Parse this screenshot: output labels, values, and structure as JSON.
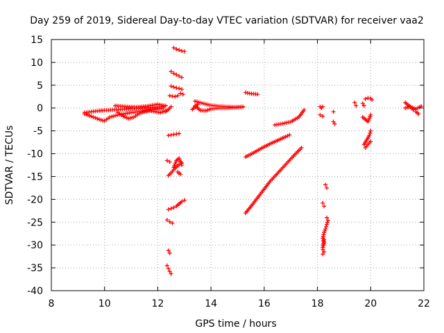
{
  "chart_data": {
    "type": "scatter",
    "title": "Day 259 of 2019, Sidereal Day-to-day VTEC variation (SDTVAR) for receiver vaa2",
    "xlabel": "GPS time / hours",
    "ylabel": "SDTVAR / TECUs",
    "xlim": [
      8,
      22
    ],
    "ylim": [
      -40,
      15
    ],
    "xticks": [
      8,
      10,
      12,
      14,
      16,
      18,
      20,
      22
    ],
    "yticks": [
      15,
      10,
      5,
      0,
      -5,
      -10,
      -15,
      -20,
      -25,
      -30,
      -35,
      -40
    ],
    "grid": true,
    "marker": "+",
    "color": "#ff0000",
    "segments": [
      {
        "x": [
          9.25,
          9.5,
          9.8,
          10.0,
          10.3,
          10.6,
          10.9,
          11.2,
          11.5,
          11.8,
          12.2
        ],
        "y": [
          -1.0,
          -0.8,
          -0.6,
          -0.5,
          -0.4,
          -0.3,
          -0.2,
          -0.1,
          0.0,
          0.1,
          0.3
        ]
      },
      {
        "x": [
          9.25,
          9.5,
          9.8,
          10.0,
          10.2,
          10.5,
          10.8,
          11.0,
          11.3,
          11.6,
          11.9,
          12.2
        ],
        "y": [
          -1.3,
          -1.8,
          -2.5,
          -2.8,
          -2.0,
          -1.5,
          -1.2,
          -1.0,
          -0.8,
          -0.5,
          -0.3,
          0.0
        ]
      },
      {
        "x": [
          10.5,
          10.7,
          10.9,
          11.1,
          11.3,
          11.5,
          11.7,
          11.9,
          12.1,
          12.3
        ],
        "y": [
          -1.0,
          -1.8,
          -2.3,
          -2.0,
          -1.2,
          -0.8,
          -0.6,
          -0.8,
          -1.0,
          -0.6
        ]
      },
      {
        "x": [
          10.4,
          10.8,
          11.2,
          11.6,
          12.0,
          12.3
        ],
        "y": [
          0.5,
          0.3,
          0.2,
          0.4,
          0.8,
          0.5
        ]
      },
      {
        "x": [
          12.3,
          12.4,
          12.5
        ],
        "y": [
          -0.8,
          -0.3,
          0.3
        ]
      },
      {
        "x": [
          12.45,
          12.55,
          12.65,
          12.75
        ],
        "y": [
          2.7,
          2.6,
          2.5,
          2.7
        ]
      },
      {
        "x": [
          12.5,
          12.6,
          12.7,
          12.8,
          12.9
        ],
        "y": [
          4.8,
          4.6,
          4.4,
          4.3,
          4.1
        ]
      },
      {
        "x": [
          12.85,
          12.95
        ],
        "y": [
          3.2,
          3.0
        ]
      },
      {
        "x": [
          12.5,
          12.6,
          12.7,
          12.8,
          12.9
        ],
        "y": [
          8.0,
          7.6,
          7.3,
          7.0,
          6.7
        ]
      },
      {
        "x": [
          12.6,
          12.7,
          12.8,
          12.9,
          13.0
        ],
        "y": [
          13.2,
          12.9,
          12.7,
          12.5,
          12.4
        ]
      },
      {
        "x": [
          12.4,
          12.5,
          12.6,
          12.7,
          12.8
        ],
        "y": [
          -6.0,
          -5.9,
          -5.8,
          -5.7,
          -5.6
        ]
      },
      {
        "x": [
          12.35,
          12.45
        ],
        "y": [
          -11.5,
          -11.8
        ]
      },
      {
        "x": [
          12.4,
          12.5,
          12.6,
          12.7,
          12.8,
          12.9
        ],
        "y": [
          -14.8,
          -14.2,
          -13.5,
          -12.9,
          -12.4,
          -12.0
        ]
      },
      {
        "x": [
          12.6,
          12.7,
          12.8,
          12.9
        ],
        "y": [
          -13.0,
          -11.5,
          -11.0,
          -12.5
        ]
      },
      {
        "x": [
          12.75,
          12.85
        ],
        "y": [
          -14.0,
          -14.5
        ]
      },
      {
        "x": [
          12.4,
          12.5,
          12.6,
          12.7,
          12.8,
          12.9,
          13.0
        ],
        "y": [
          -22.2,
          -22.0,
          -21.8,
          -21.5,
          -21.0,
          -20.5,
          -20.2
        ]
      },
      {
        "x": [
          12.35,
          12.45,
          12.55
        ],
        "y": [
          -24.5,
          -24.9,
          -25.2
        ]
      },
      {
        "x": [
          12.4,
          12.45
        ],
        "y": [
          -31.2,
          -31.8
        ]
      },
      {
        "x": [
          12.35,
          12.4,
          12.45,
          12.5
        ],
        "y": [
          -34.5,
          -35.2,
          -35.8,
          -36.3
        ]
      },
      {
        "x": [
          13.4,
          13.7,
          14.0,
          14.3,
          14.6,
          14.9,
          15.2
        ],
        "y": [
          1.5,
          1.0,
          0.6,
          0.4,
          0.3,
          0.2,
          0.3
        ]
      },
      {
        "x": [
          13.4,
          13.6,
          13.8,
          14.0,
          14.3,
          14.6,
          14.9,
          15.2
        ],
        "y": [
          0.5,
          -0.5,
          -0.6,
          -0.2,
          0.0,
          0.0,
          0.1,
          0.2
        ]
      },
      {
        "x": [
          13.3,
          13.4,
          13.5
        ],
        "y": [
          -0.3,
          0.2,
          0.8
        ]
      },
      {
        "x": [
          15.3,
          15.45,
          15.6,
          15.75
        ],
        "y": [
          3.4,
          3.2,
          3.1,
          3.0
        ]
      },
      {
        "x": [
          15.3,
          15.6,
          15.9,
          16.2,
          16.5,
          16.8,
          16.95
        ],
        "y": [
          -10.7,
          -9.8,
          -8.8,
          -7.9,
          -7.1,
          -6.3,
          -5.9
        ]
      },
      {
        "x": [
          15.3,
          15.6,
          15.9,
          16.2,
          16.5,
          16.8,
          17.1,
          17.4
        ],
        "y": [
          -23.0,
          -20.8,
          -18.5,
          -16.2,
          -14.3,
          -12.4,
          -10.5,
          -8.7
        ]
      },
      {
        "x": [
          16.4,
          16.7,
          17.0,
          17.3,
          17.5
        ],
        "y": [
          -3.7,
          -3.4,
          -3.0,
          -2.0,
          -0.4
        ]
      },
      {
        "x": [
          18.1,
          18.15,
          18.2
        ],
        "y": [
          0.3,
          0.0,
          0.3
        ]
      },
      {
        "x": [
          18.1,
          18.2
        ],
        "y": [
          -1.5,
          -1.8
        ]
      },
      {
        "x": [
          18.6
        ],
        "y": [
          -0.8
        ]
      },
      {
        "x": [
          18.6,
          18.65
        ],
        "y": [
          -3.0,
          -3.5
        ]
      },
      {
        "x": [
          18.3,
          18.35
        ],
        "y": [
          -16.8,
          -17.5
        ]
      },
      {
        "x": [
          18.2,
          18.25
        ],
        "y": [
          -20.8,
          -21.5
        ]
      },
      {
        "x": [
          18.35,
          18.4,
          18.35,
          18.3,
          18.25,
          18.2,
          18.25,
          18.2
        ],
        "y": [
          -24.0,
          -24.6,
          -25.5,
          -26.5,
          -27.3,
          -28.5,
          -29.5,
          -30.5
        ]
      },
      {
        "x": [
          18.25,
          18.2,
          18.25,
          18.2
        ],
        "y": [
          -28.8,
          -31.0,
          -31.5,
          -32.0
        ]
      },
      {
        "x": [
          19.4,
          19.45
        ],
        "y": [
          1.2,
          0.5
        ]
      },
      {
        "x": [
          19.7,
          19.75
        ],
        "y": [
          1.0,
          0.5
        ]
      },
      {
        "x": [
          19.8,
          19.9,
          20.0,
          20.05
        ],
        "y": [
          2.0,
          2.2,
          2.1,
          1.8
        ]
      },
      {
        "x": [
          19.7,
          19.8,
          19.9,
          20.0
        ],
        "y": [
          -2.0,
          -2.5,
          -3.0,
          -1.5
        ]
      },
      {
        "x": [
          19.75,
          19.85,
          19.95,
          20.0
        ],
        "y": [
          -8.0,
          -7.0,
          -6.0,
          -5.0
        ]
      },
      {
        "x": [
          19.8,
          19.9,
          20.0
        ],
        "y": [
          -8.7,
          -8.0,
          -7.3
        ]
      },
      {
        "x": [
          21.3,
          21.4,
          21.5,
          21.6,
          21.7,
          21.8
        ],
        "y": [
          1.2,
          0.7,
          0.2,
          -0.4,
          -0.8,
          -1.3
        ]
      },
      {
        "x": [
          21.3,
          21.5,
          21.7,
          21.9
        ],
        "y": [
          0.0,
          0.3,
          -0.2,
          0.4
        ]
      }
    ]
  }
}
